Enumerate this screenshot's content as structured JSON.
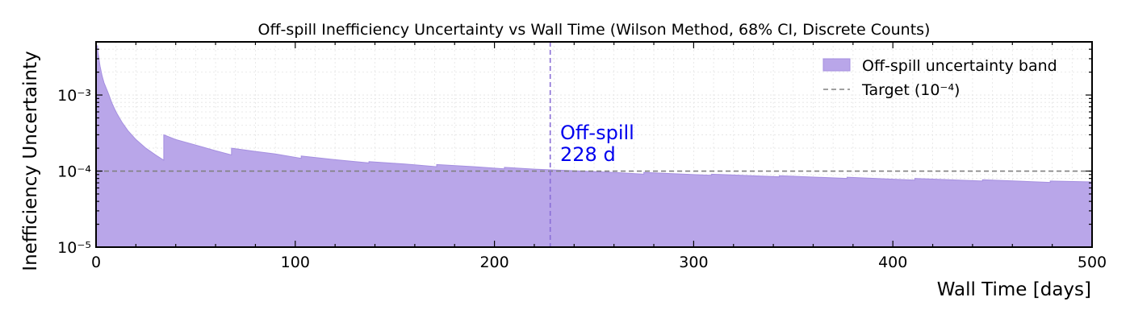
{
  "chart_data": {
    "type": "area",
    "title": "Off-spill Inefficiency Uncertainty vs Wall Time (Wilson Method, 68% CI, Discrete Counts)",
    "xlabel": "Wall Time [days]",
    "ylabel": "Inefficiency Uncertainty",
    "xlim": [
      0,
      500
    ],
    "ylim": [
      1e-05,
      0.005
    ],
    "yscale": "log",
    "grid": true,
    "legend_placement": "top-right",
    "x_ticks": [
      0,
      100,
      200,
      300,
      400,
      500
    ],
    "x_tick_labels": [
      "0",
      "100",
      "200",
      "300",
      "400",
      "500"
    ],
    "y_ticks": [
      1e-05,
      0.0001,
      0.001
    ],
    "y_tick_labels": [
      "10⁻⁵",
      "10⁻⁴",
      "10⁻³"
    ],
    "series": [
      {
        "name": "Off-spill uncertainty band",
        "color": "#b9a6e9",
        "edge_color": "#a58fe0",
        "x": [
          0.7,
          1,
          2,
          3,
          4,
          6,
          8,
          10,
          13,
          16,
          20,
          25,
          30,
          34,
          34,
          40,
          50,
          60,
          68,
          68,
          80,
          90,
          103,
          103,
          120,
          137,
          137,
          155,
          171,
          171,
          190,
          205,
          205,
          220,
          240,
          260,
          275,
          275,
          300,
          309,
          309,
          343,
          343,
          377,
          377,
          411,
          411,
          445,
          445,
          479,
          479,
          500
        ],
        "values": [
          0.0045,
          0.0036,
          0.0024,
          0.0018,
          0.00145,
          0.00108,
          0.00078,
          0.0006,
          0.00044,
          0.00034,
          0.00026,
          0.0002,
          0.000162,
          0.000139,
          0.0003,
          0.00026,
          0.00022,
          0.000185,
          0.000163,
          0.0002,
          0.000181,
          0.000168,
          0.000147,
          0.000158,
          0.000141,
          0.000128,
          0.000133,
          0.000124,
          0.000114,
          0.000122,
          0.000114,
          0.000107,
          0.000112,
          0.000106,
          0.000101,
          9.6e-05,
          9.1e-05,
          9.6e-05,
          9e-05,
          8.8e-05,
          9.1e-05,
          8.4e-05,
          8.7e-05,
          8e-05,
          8.3e-05,
          7.6e-05,
          8e-05,
          7.4e-05,
          7.7e-05,
          7.1e-05,
          7.4e-05,
          7.2e-05
        ]
      },
      {
        "name": "Target (10⁻⁴)",
        "color": "#808080",
        "y": 0.0001
      }
    ],
    "vline": {
      "x": 228,
      "color": "#8a6fd6"
    },
    "annotation": {
      "line1": "Off-spill",
      "line2": "228 d",
      "x": 228,
      "color": "#0000ee"
    }
  }
}
